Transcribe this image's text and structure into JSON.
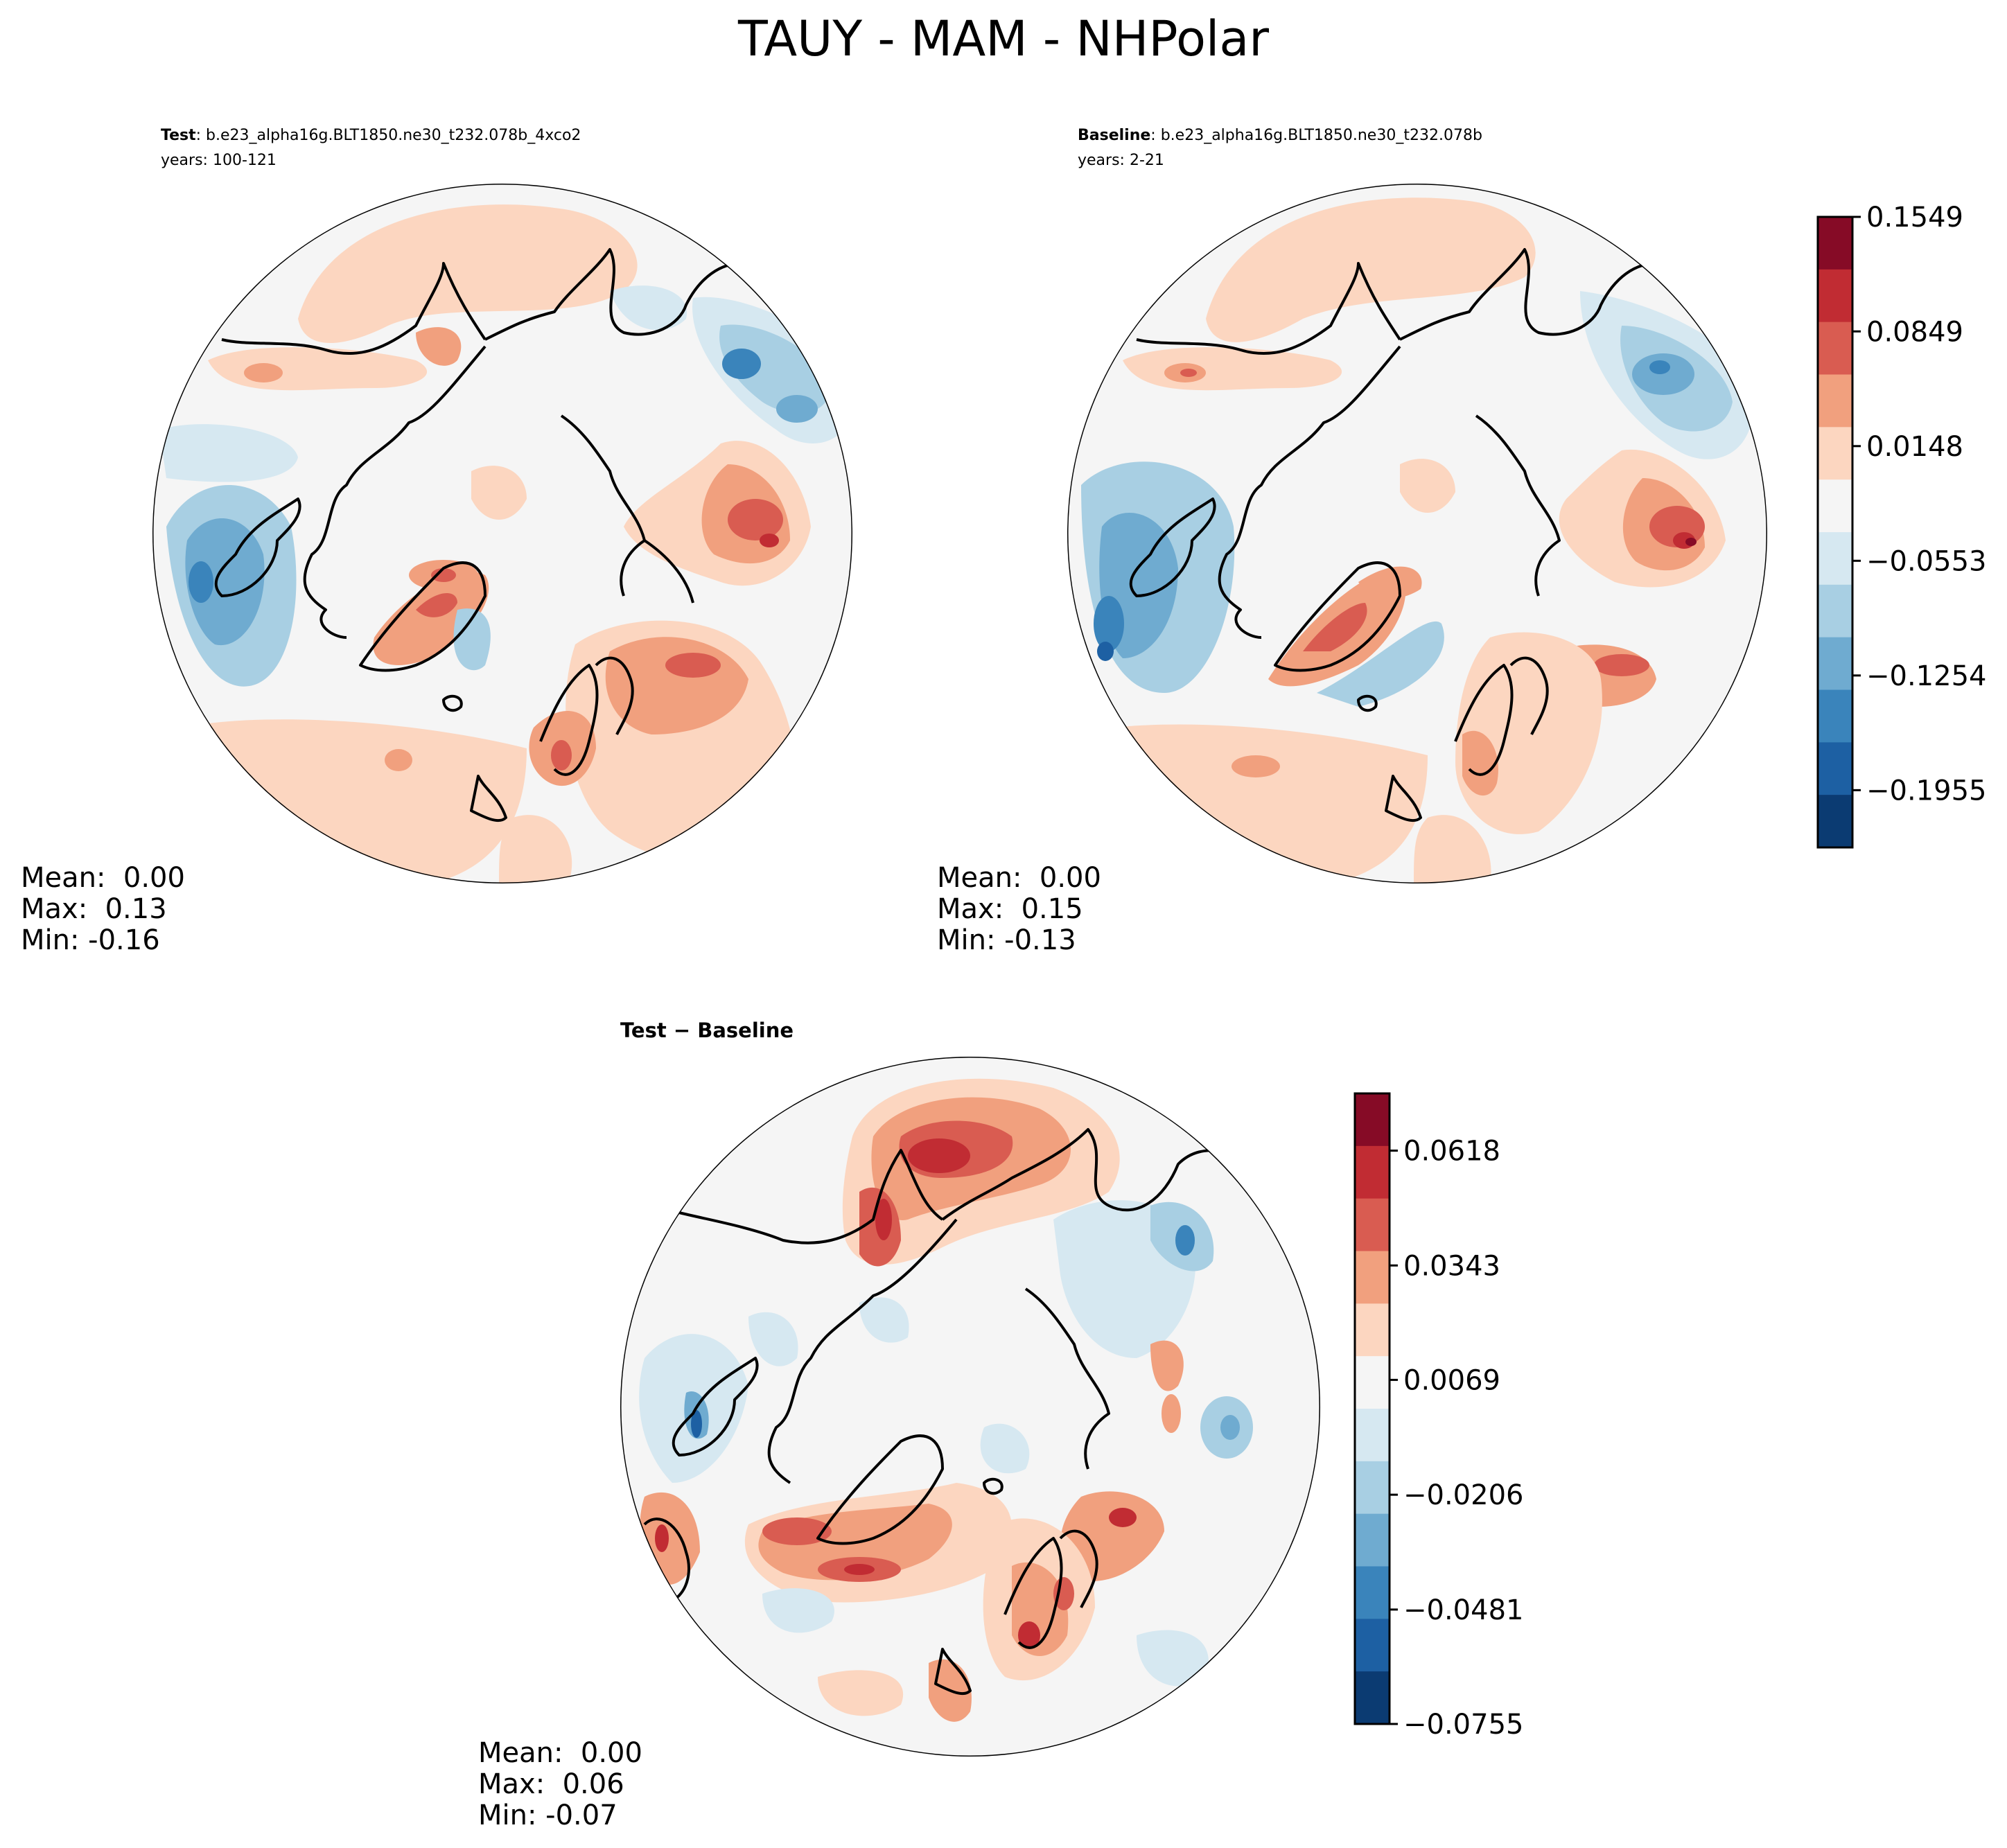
{
  "figure": {
    "title": "TAUY - MAM - NHPolar"
  },
  "chart_data": [
    {
      "type": "polar-contour-map",
      "id": "test",
      "title_bold": "Test",
      "title_rest": ": b.e23_alpha16g.BLT1850.ne30_t232.078b_4xco2",
      "subtitle": "years: 100-121",
      "stats": [
        "Mean:  0.00",
        "Max:  0.13",
        "Min: -0.16"
      ],
      "mean": 0.0,
      "max": 0.13,
      "min": -0.16
    },
    {
      "type": "polar-contour-map",
      "id": "baseline",
      "title_bold": "Baseline",
      "title_rest": ": b.e23_alpha16g.BLT1850.ne30_t232.078b",
      "subtitle": "years: 2-21",
      "stats": [
        "Mean:  0.00",
        "Max:  0.15",
        "Min: -0.13"
      ],
      "mean": 0.0,
      "max": 0.15,
      "min": -0.13
    },
    {
      "type": "polar-contour-map",
      "id": "diff",
      "title_bold": "Test − Baseline",
      "title_rest": "",
      "subtitle": "",
      "stats": [
        "Mean:  0.00",
        "Max:  0.06",
        "Min: -0.07"
      ],
      "mean": 0.0,
      "max": 0.06,
      "min": -0.07
    }
  ],
  "colorbars": {
    "main": {
      "ticks": [
        "0.1549",
        "0.0849",
        "0.0148",
        "−0.0553",
        "−0.1254",
        "−0.1955"
      ],
      "tick_values": [
        0.1549,
        0.0849,
        0.0148,
        -0.0553,
        -0.1254,
        -0.1955
      ],
      "range": [
        -0.2305,
        0.1549
      ],
      "colors_top_to_bottom": [
        "#860b26",
        "#c12c33",
        "#d95c51",
        "#f1a07e",
        "#fcd6c0",
        "#f5f5f5",
        "#d6e8f1",
        "#a8cfe3",
        "#6fabd0",
        "#3a84bb",
        "#1d60a3",
        "#0b3b72"
      ]
    },
    "diff": {
      "ticks": [
        "0.0618",
        "0.0343",
        "0.0069",
        "−0.0206",
        "−0.0481",
        "−0.0755"
      ],
      "tick_values": [
        0.0618,
        0.0343,
        0.0069,
        -0.0206,
        -0.0481,
        -0.0755
      ],
      "range": [
        -0.0755,
        0.0755
      ],
      "colors_top_to_bottom": [
        "#860b26",
        "#c12c33",
        "#d95c51",
        "#f1a07e",
        "#fcd6c0",
        "#f5f5f5",
        "#d6e8f1",
        "#a8cfe3",
        "#6fabd0",
        "#3a84bb",
        "#1d60a3",
        "#0b3b72"
      ]
    }
  }
}
